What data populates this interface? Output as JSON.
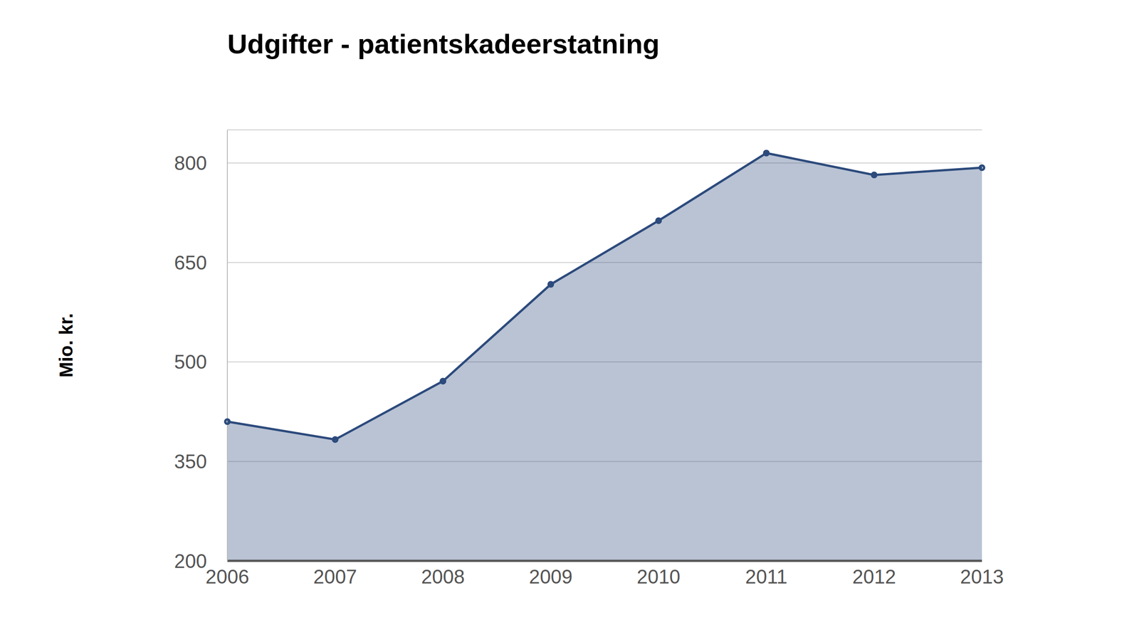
{
  "chart_data": {
    "type": "area",
    "title": "Udgifter - patientskadeerstatning",
    "y_label": "Mio. kr.",
    "categories": [
      "2006",
      "2007",
      "2008",
      "2009",
      "2010",
      "2011",
      "2012",
      "2013"
    ],
    "values": [
      410,
      383,
      471,
      617,
      713,
      815,
      782,
      793
    ],
    "color": "#2c4a7c",
    "ylim": [
      200,
      850
    ],
    "yticks": [
      200,
      350,
      500,
      650,
      800
    ],
    "grid": true,
    "marker": "circle"
  }
}
